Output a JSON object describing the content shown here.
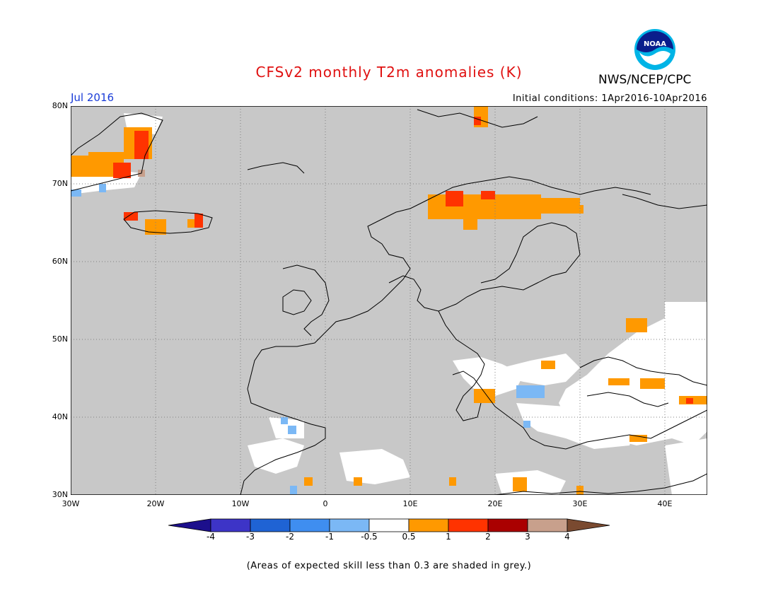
{
  "title": "CFSv2 monthly T2m anomalies (K)",
  "organization": "NWS/NCEP/CPC",
  "logo_text": "NOAA",
  "month": "Jul 2016",
  "initial_conditions": "Initial conditions: 1Apr2016-10Apr2016",
  "footnote": "(Areas of expected skill less than 0.3 are shaded in grey.)",
  "lat_labels": [
    "80N",
    "70N",
    "60N",
    "50N",
    "40N",
    "30N"
  ],
  "lon_labels": [
    "30W",
    "20W",
    "10W",
    "0",
    "10E",
    "20E",
    "30E",
    "40E"
  ],
  "colorbar": {
    "labels": [
      "-4",
      "-3",
      "-2",
      "-1",
      "-0.5",
      "0.5",
      "1",
      "2",
      "3",
      "4"
    ],
    "colors": [
      "#1c0f8c",
      "#3d34c7",
      "#1f63d4",
      "#3f8ef0",
      "#7bb8f5",
      "#ffffff",
      "#ff9900",
      "#ff3300",
      "#aa0000",
      "#c8a08c",
      "#7a4a30"
    ]
  },
  "colors": {
    "grey_mask": "#c8c8c8",
    "land_unmasked": "#ffffff",
    "coast": "#000000",
    "grid": "#808080"
  }
}
